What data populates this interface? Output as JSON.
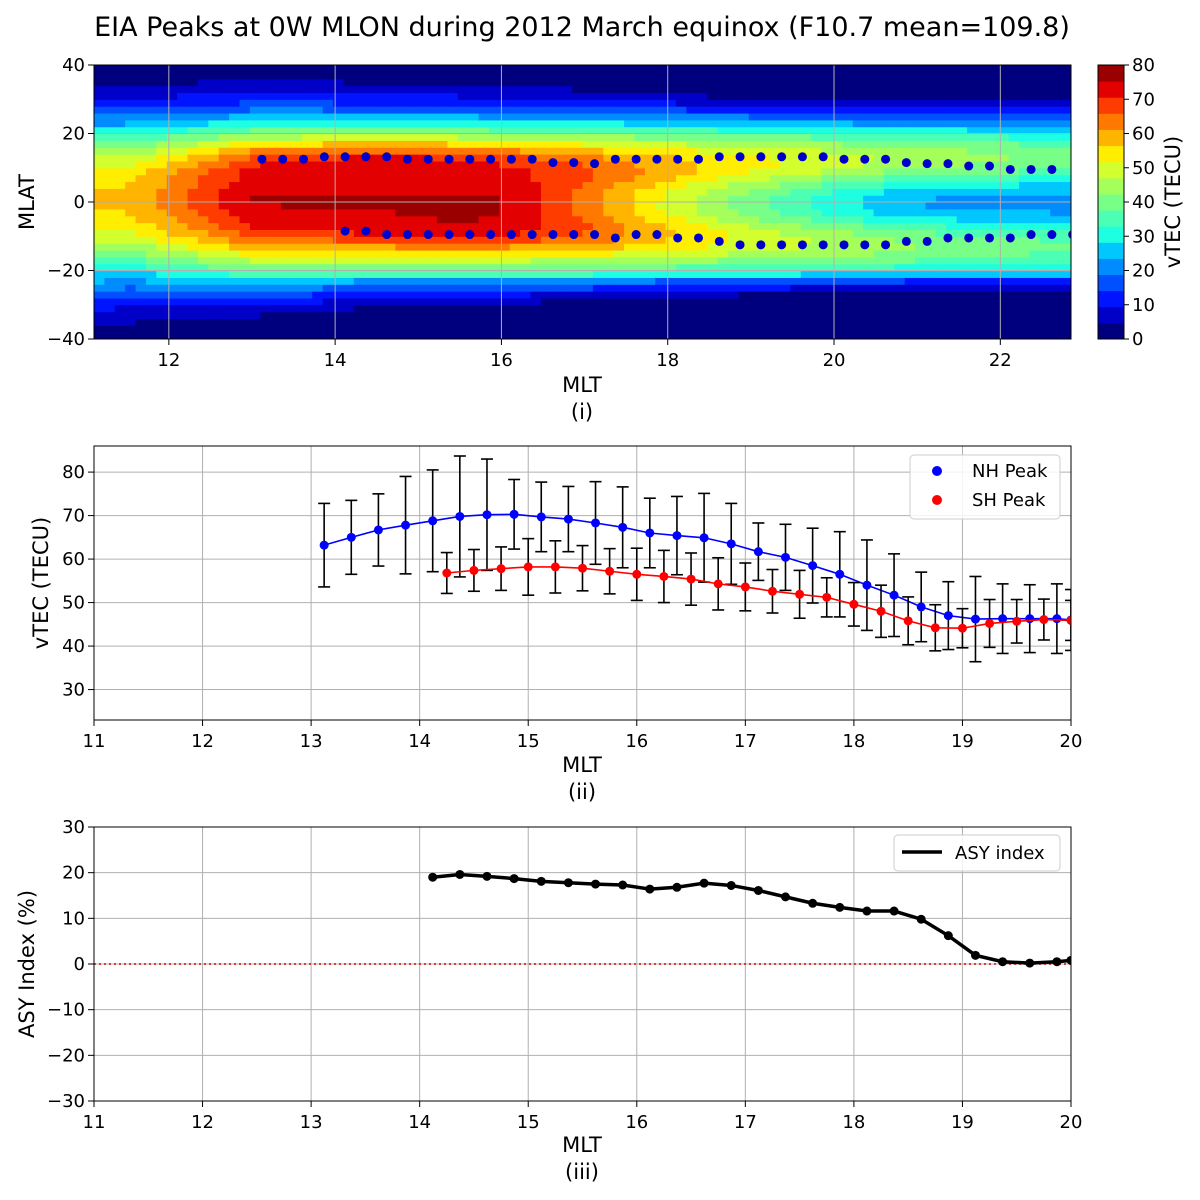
{
  "title": "EIA Peaks at 0W MLON during 2012 March equinox (F10.7 mean=109.8)",
  "chart_data": [
    {
      "panel": "(i)",
      "type": "heatmap",
      "xlabel": "MLT",
      "ylabel": "MLAT",
      "xlim": [
        11.1,
        22.85
      ],
      "ylim": [
        -40,
        40
      ],
      "xticks": [
        12,
        14,
        16,
        18,
        20,
        22
      ],
      "yticks": [
        -40,
        -20,
        0,
        20,
        40
      ],
      "grid": true,
      "colorbar": {
        "label": "vTEC (TECU)",
        "ticks": [
          0,
          10,
          20,
          30,
          40,
          50,
          60,
          70,
          80
        ],
        "range": [
          0,
          80
        ],
        "colors": [
          "#00007f",
          "#0000c8",
          "#0014ff",
          "#0050ff",
          "#008cff",
          "#00c8ff",
          "#1effe1",
          "#4bffb4",
          "#78ff87",
          "#a5ff5a",
          "#d2ff2d",
          "#ffee00",
          "#ffb400",
          "#ff7800",
          "#ff3c00",
          "#e30000",
          "#9a0000"
        ]
      },
      "nh_peaks": [
        [
          13.12,
          12.5
        ],
        [
          13.37,
          12.5
        ],
        [
          13.62,
          12.5
        ],
        [
          13.87,
          13.2
        ],
        [
          14.12,
          13.2
        ],
        [
          14.37,
          13.2
        ],
        [
          14.62,
          13.2
        ],
        [
          14.87,
          12.5
        ],
        [
          15.12,
          12.5
        ],
        [
          15.37,
          12.5
        ],
        [
          15.62,
          12.5
        ],
        [
          15.87,
          12.5
        ],
        [
          16.12,
          12.5
        ],
        [
          16.37,
          12.5
        ],
        [
          16.62,
          11.5
        ],
        [
          16.87,
          11.5
        ],
        [
          17.12,
          11.2
        ],
        [
          17.37,
          12.5
        ],
        [
          17.62,
          12.5
        ],
        [
          17.87,
          12.5
        ],
        [
          18.12,
          12.5
        ],
        [
          18.37,
          12.5
        ],
        [
          18.62,
          13.2
        ],
        [
          18.87,
          13.2
        ],
        [
          19.12,
          13.2
        ],
        [
          19.37,
          13.2
        ],
        [
          19.62,
          13.2
        ],
        [
          19.87,
          13.2
        ],
        [
          20.12,
          12.5
        ],
        [
          20.37,
          12.5
        ],
        [
          20.62,
          12.5
        ],
        [
          20.87,
          11.5
        ],
        [
          21.12,
          11.2
        ],
        [
          21.37,
          11.2
        ],
        [
          21.62,
          10.5
        ],
        [
          21.87,
          10.5
        ],
        [
          22.12,
          9.5
        ],
        [
          22.37,
          9.5
        ],
        [
          22.62,
          9.5
        ]
      ],
      "sh_peaks": [
        [
          14.12,
          -8.5
        ],
        [
          14.37,
          -8.5
        ],
        [
          14.62,
          -9.5
        ],
        [
          14.87,
          -9.5
        ],
        [
          15.12,
          -9.5
        ],
        [
          15.37,
          -9.5
        ],
        [
          15.62,
          -9.5
        ],
        [
          15.87,
          -9.5
        ],
        [
          16.12,
          -9.5
        ],
        [
          16.37,
          -9.5
        ],
        [
          16.62,
          -9.5
        ],
        [
          16.87,
          -9.5
        ],
        [
          17.12,
          -9.5
        ],
        [
          17.37,
          -10.5
        ],
        [
          17.62,
          -9.5
        ],
        [
          17.87,
          -9.5
        ],
        [
          18.12,
          -10.5
        ],
        [
          18.37,
          -10.5
        ],
        [
          18.62,
          -11.5
        ],
        [
          18.87,
          -12.5
        ],
        [
          19.12,
          -12.5
        ],
        [
          19.37,
          -12.5
        ],
        [
          19.62,
          -12.5
        ],
        [
          19.87,
          -12.5
        ],
        [
          20.12,
          -12.5
        ],
        [
          20.37,
          -12.5
        ],
        [
          20.62,
          -12.5
        ],
        [
          20.87,
          -11.5
        ],
        [
          21.12,
          -11.5
        ],
        [
          21.37,
          -10.5
        ],
        [
          21.62,
          -10.5
        ],
        [
          21.87,
          -10.5
        ],
        [
          22.12,
          -10.5
        ],
        [
          22.37,
          -9.5
        ],
        [
          22.62,
          -9.5
        ],
        [
          22.87,
          -9.5
        ]
      ]
    },
    {
      "panel": "(ii)",
      "type": "line",
      "xlabel": "MLT",
      "ylabel": "vTEC (TECU)",
      "xlim": [
        11,
        20
      ],
      "ylim": [
        23,
        86
      ],
      "xticks": [
        11,
        12,
        13,
        14,
        15,
        16,
        17,
        18,
        19,
        20
      ],
      "yticks": [
        30,
        40,
        50,
        60,
        70,
        80
      ],
      "grid": true,
      "legend": "top-right",
      "series": [
        {
          "name": "NH Peak",
          "color": "#0000ff",
          "x": [
            13.12,
            13.37,
            13.62,
            13.87,
            14.12,
            14.37,
            14.62,
            14.87,
            15.12,
            15.37,
            15.62,
            15.87,
            16.12,
            16.37,
            16.62,
            16.87,
            17.12,
            17.37,
            17.62,
            17.87,
            18.12,
            18.37,
            18.62,
            18.87,
            19.12,
            19.37,
            19.62,
            19.87,
            20.0
          ],
          "y": [
            63.2,
            65.0,
            66.7,
            67.8,
            68.8,
            69.8,
            70.2,
            70.3,
            69.7,
            69.2,
            68.3,
            67.3,
            66.0,
            65.4,
            64.9,
            63.5,
            61.7,
            60.4,
            58.5,
            56.5,
            54.0,
            51.7,
            49.0,
            47.0,
            46.2,
            46.3,
            46.3,
            46.3,
            46.0
          ],
          "err": [
            9.6,
            8.5,
            8.3,
            11.2,
            11.7,
            13.9,
            12.8,
            8.0,
            8.0,
            7.5,
            9.5,
            9.3,
            8.0,
            9.0,
            10.2,
            9.3,
            6.6,
            7.6,
            8.6,
            9.8,
            10.4,
            9.5,
            8.0,
            7.8,
            9.8,
            8.0,
            7.8,
            8.0,
            7.0
          ]
        },
        {
          "name": "SH Peak",
          "color": "#ff0000",
          "x": [
            14.25,
            14.5,
            14.75,
            15.0,
            15.25,
            15.5,
            15.75,
            16.0,
            16.25,
            16.5,
            16.75,
            17.0,
            17.25,
            17.5,
            17.75,
            18.0,
            18.25,
            18.5,
            18.75,
            19.0,
            19.25,
            19.5,
            19.75,
            20.0
          ],
          "y": [
            56.8,
            57.4,
            57.8,
            58.2,
            58.2,
            57.9,
            57.2,
            56.5,
            56.0,
            55.4,
            54.3,
            53.6,
            52.6,
            51.9,
            51.2,
            49.6,
            48.0,
            45.8,
            44.2,
            44.1,
            45.2,
            45.7,
            46.1,
            45.9
          ],
          "err": [
            4.7,
            4.8,
            5.0,
            6.5,
            6.0,
            5.2,
            5.2,
            6.0,
            6.0,
            6.0,
            6.0,
            5.5,
            5.0,
            5.5,
            4.5,
            5.0,
            6.0,
            5.5,
            5.3,
            4.5,
            5.5,
            5.0,
            4.7,
            4.6
          ]
        }
      ]
    },
    {
      "panel": "(iii)",
      "type": "line",
      "xlabel": "MLT",
      "ylabel": "ASY Index (%)",
      "xlim": [
        11,
        20
      ],
      "ylim": [
        -30,
        30
      ],
      "xticks": [
        11,
        12,
        13,
        14,
        15,
        16,
        17,
        18,
        19,
        20
      ],
      "yticks": [
        -30,
        -20,
        -10,
        0,
        10,
        20,
        30
      ],
      "grid": true,
      "legend": "top-right",
      "reference_line": 0,
      "series": [
        {
          "name": "ASY index",
          "color": "#000000",
          "x": [
            14.12,
            14.37,
            14.62,
            14.87,
            15.12,
            15.37,
            15.62,
            15.87,
            16.12,
            16.37,
            16.62,
            16.87,
            17.12,
            17.37,
            17.62,
            17.87,
            18.12,
            18.37,
            18.62,
            18.87,
            19.12,
            19.37,
            19.62,
            19.87,
            20.0
          ],
          "y": [
            19.0,
            19.6,
            19.2,
            18.7,
            18.1,
            17.8,
            17.5,
            17.3,
            16.4,
            16.8,
            17.7,
            17.2,
            16.1,
            14.7,
            13.3,
            12.4,
            11.6,
            11.6,
            9.8,
            6.2,
            1.9,
            0.5,
            0.2,
            0.5,
            0.8
          ]
        }
      ]
    }
  ]
}
